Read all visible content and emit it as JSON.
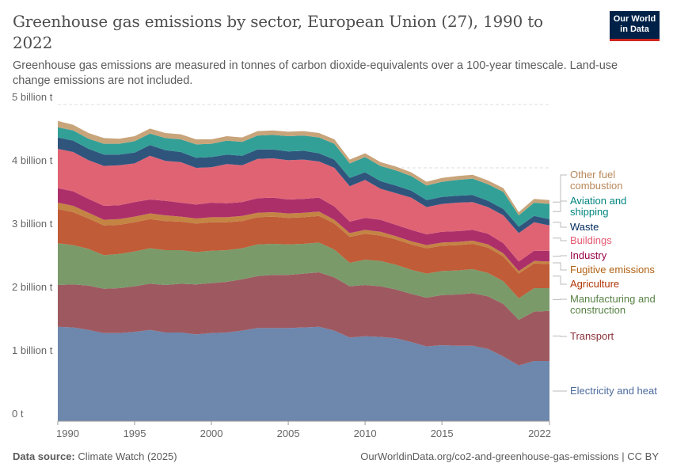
{
  "header": {
    "title": "Greenhouse gas emissions by sector, European Union (27), 1990 to 2022",
    "subtitle": "Greenhouse gas emissions are measured in tonnes of carbon dioxide-equivalents over a 100-year timescale. Land-use change emissions are not included.",
    "logo": "Our World in Data"
  },
  "footer": {
    "source_label": "Data source:",
    "source": "Climate Watch (2025)",
    "url_license": "OurWorldinData.org/co2-and-greenhouse-gas-emissions | CC BY"
  },
  "chart_data": {
    "type": "area",
    "stacked": true,
    "title": "Greenhouse gas emissions by sector, European Union (27), 1990 to 2022",
    "ylabel": "",
    "xlabel": "",
    "unit": "billion t",
    "ylim": [
      0,
      5
    ],
    "xlim": [
      1990,
      2022
    ],
    "yticks": [
      {
        "v": 0,
        "label": "0 t"
      },
      {
        "v": 1,
        "label": "1 billion t"
      },
      {
        "v": 2,
        "label": "2 billion t"
      },
      {
        "v": 3,
        "label": "3 billion t"
      },
      {
        "v": 4,
        "label": "4 billion t"
      },
      {
        "v": 5,
        "label": "5 billion t"
      }
    ],
    "xticks": [
      {
        "v": 1990,
        "label": "1990"
      },
      {
        "v": 1995,
        "label": "1995"
      },
      {
        "v": 2000,
        "label": "2000"
      },
      {
        "v": 2005,
        "label": "2005"
      },
      {
        "v": 2010,
        "label": "2010"
      },
      {
        "v": 2015,
        "label": "2015"
      },
      {
        "v": 2022,
        "label": "2022"
      }
    ],
    "grid": "horizontal-dashed",
    "legend": "right, inline labels",
    "x": [
      1990,
      1991,
      1992,
      1993,
      1994,
      1995,
      1996,
      1997,
      1998,
      1999,
      2000,
      2001,
      2002,
      2003,
      2004,
      2005,
      2006,
      2007,
      2008,
      2009,
      2010,
      2011,
      2012,
      2013,
      2014,
      2015,
      2016,
      2017,
      2018,
      2019,
      2020,
      2021,
      2022
    ],
    "series": [
      {
        "name": "Electricity and heat",
        "fill": "#6d87ad",
        "text": "#4c6a9c",
        "label_lines": [
          "Electricity and heat"
        ],
        "values": [
          1.49,
          1.48,
          1.44,
          1.39,
          1.39,
          1.41,
          1.44,
          1.4,
          1.4,
          1.37,
          1.39,
          1.4,
          1.43,
          1.47,
          1.47,
          1.47,
          1.48,
          1.49,
          1.43,
          1.32,
          1.34,
          1.33,
          1.31,
          1.25,
          1.18,
          1.2,
          1.19,
          1.19,
          1.14,
          1.02,
          0.88,
          0.95,
          0.95
        ]
      },
      {
        "name": "Transport",
        "fill": "#9e5960",
        "text": "#883039",
        "label_lines": [
          "Transport"
        ],
        "values": [
          0.66,
          0.68,
          0.7,
          0.7,
          0.71,
          0.72,
          0.73,
          0.75,
          0.77,
          0.79,
          0.79,
          0.8,
          0.81,
          0.82,
          0.84,
          0.84,
          0.85,
          0.86,
          0.84,
          0.81,
          0.81,
          0.8,
          0.77,
          0.76,
          0.77,
          0.79,
          0.81,
          0.83,
          0.83,
          0.83,
          0.72,
          0.78,
          0.79
        ]
      },
      {
        "name": "Manufacturing and construction",
        "fill": "#7a9a6a",
        "text": "#578145",
        "label_lines": [
          "Manufacturing and",
          "construction"
        ],
        "values": [
          0.66,
          0.62,
          0.58,
          0.53,
          0.54,
          0.55,
          0.56,
          0.55,
          0.53,
          0.51,
          0.51,
          0.5,
          0.49,
          0.5,
          0.49,
          0.48,
          0.47,
          0.47,
          0.44,
          0.37,
          0.4,
          0.4,
          0.39,
          0.38,
          0.38,
          0.38,
          0.38,
          0.38,
          0.37,
          0.36,
          0.34,
          0.37,
          0.36
        ]
      },
      {
        "name": "Agriculture",
        "fill": "#c05c38",
        "text": "#b13507",
        "label_lines": [
          "Agriculture"
        ],
        "values": [
          0.54,
          0.52,
          0.48,
          0.47,
          0.46,
          0.46,
          0.46,
          0.46,
          0.45,
          0.45,
          0.45,
          0.44,
          0.43,
          0.43,
          0.43,
          0.42,
          0.42,
          0.42,
          0.41,
          0.41,
          0.41,
          0.4,
          0.4,
          0.4,
          0.4,
          0.4,
          0.4,
          0.4,
          0.4,
          0.39,
          0.39,
          0.39,
          0.38
        ]
      },
      {
        "name": "Fugitive emissions",
        "fill": "#c48443",
        "text": "#b16214",
        "label_lines": [
          "Fugitive emissions"
        ],
        "values": [
          0.1,
          0.1,
          0.09,
          0.09,
          0.09,
          0.09,
          0.09,
          0.09,
          0.08,
          0.08,
          0.08,
          0.08,
          0.08,
          0.07,
          0.07,
          0.07,
          0.07,
          0.07,
          0.06,
          0.06,
          0.06,
          0.06,
          0.05,
          0.05,
          0.05,
          0.05,
          0.05,
          0.05,
          0.05,
          0.05,
          0.04,
          0.04,
          0.04
        ]
      },
      {
        "name": "Industry",
        "fill": "#ad2f6a",
        "text": "#970046",
        "label_lines": [
          "Industry"
        ],
        "values": [
          0.23,
          0.23,
          0.22,
          0.22,
          0.22,
          0.23,
          0.22,
          0.23,
          0.22,
          0.22,
          0.23,
          0.22,
          0.22,
          0.23,
          0.23,
          0.22,
          0.22,
          0.22,
          0.21,
          0.18,
          0.19,
          0.19,
          0.18,
          0.18,
          0.17,
          0.17,
          0.17,
          0.17,
          0.17,
          0.16,
          0.15,
          0.16,
          0.17
        ]
      },
      {
        "name": "Buildings",
        "fill": "#e06374",
        "text": "#e4586f",
        "label_lines": [
          "Buildings"
        ],
        "values": [
          0.62,
          0.62,
          0.61,
          0.63,
          0.63,
          0.61,
          0.69,
          0.63,
          0.64,
          0.58,
          0.56,
          0.62,
          0.58,
          0.62,
          0.62,
          0.62,
          0.62,
          0.57,
          0.61,
          0.56,
          0.6,
          0.49,
          0.5,
          0.51,
          0.43,
          0.44,
          0.45,
          0.44,
          0.42,
          0.44,
          0.45,
          0.45,
          0.4
        ]
      },
      {
        "name": "Waste",
        "fill": "#2f557d",
        "text": "#00295b",
        "label_lines": [
          "Waste"
        ],
        "values": [
          0.18,
          0.18,
          0.18,
          0.18,
          0.17,
          0.17,
          0.17,
          0.17,
          0.16,
          0.16,
          0.16,
          0.15,
          0.15,
          0.15,
          0.14,
          0.14,
          0.14,
          0.13,
          0.13,
          0.13,
          0.12,
          0.12,
          0.12,
          0.11,
          0.11,
          0.11,
          0.11,
          0.11,
          0.1,
          0.1,
          0.1,
          0.1,
          0.1
        ]
      },
      {
        "name": "Aviation and shipping",
        "fill": "#33a097",
        "text": "#00847e",
        "label_lines": [
          "Aviation and",
          "shipping"
        ],
        "values": [
          0.16,
          0.16,
          0.16,
          0.17,
          0.17,
          0.18,
          0.18,
          0.19,
          0.2,
          0.21,
          0.21,
          0.22,
          0.22,
          0.22,
          0.23,
          0.24,
          0.24,
          0.25,
          0.25,
          0.23,
          0.24,
          0.24,
          0.24,
          0.23,
          0.23,
          0.24,
          0.25,
          0.26,
          0.26,
          0.27,
          0.18,
          0.21,
          0.24
        ]
      },
      {
        "name": "Other fuel combustion",
        "fill": "#c8a47a",
        "text": "#b8875a",
        "label_lines": [
          "Other fuel",
          "combustion"
        ],
        "values": [
          0.1,
          0.09,
          0.09,
          0.09,
          0.08,
          0.08,
          0.08,
          0.08,
          0.08,
          0.08,
          0.07,
          0.07,
          0.07,
          0.07,
          0.07,
          0.07,
          0.07,
          0.07,
          0.07,
          0.06,
          0.06,
          0.06,
          0.06,
          0.06,
          0.06,
          0.06,
          0.06,
          0.06,
          0.06,
          0.06,
          0.05,
          0.06,
          0.06
        ]
      }
    ]
  }
}
